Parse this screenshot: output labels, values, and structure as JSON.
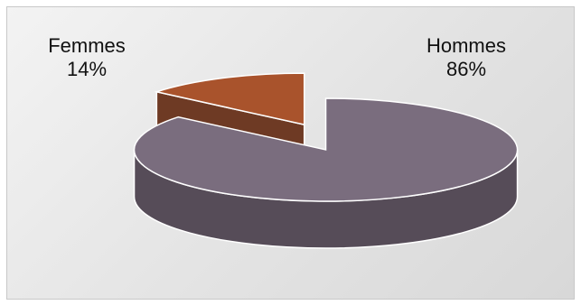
{
  "chart_data": {
    "type": "pie",
    "style": "3d-exploded",
    "categories": [
      "Hommes",
      "Femmes"
    ],
    "values": [
      86,
      14
    ],
    "data_labels": [
      {
        "name": "Hommes",
        "value_text": "86%"
      },
      {
        "name": "Femmes",
        "value_text": "14%"
      }
    ],
    "colors": {
      "Hommes": "#7a6d7e",
      "Hommes_side": "#564c58",
      "Femmes": "#a9532c",
      "Femmes_side": "#6e3a24"
    },
    "legend": "none",
    "title": ""
  }
}
